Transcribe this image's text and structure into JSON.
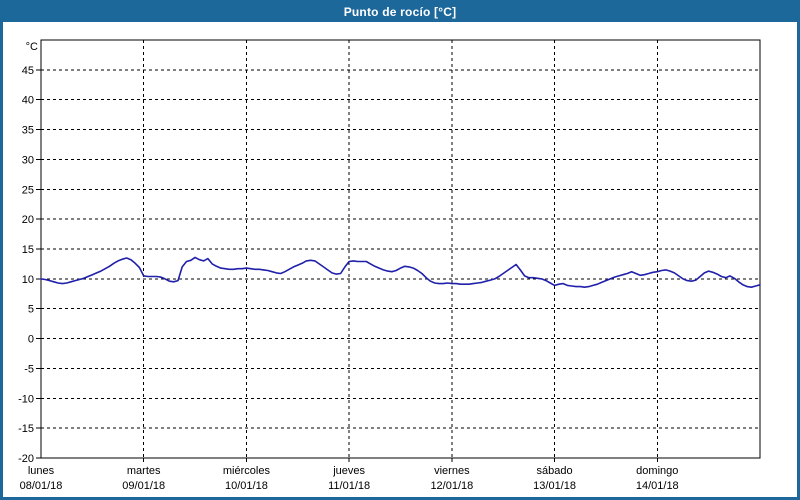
{
  "window": {
    "title": "Punto de rocío [°C]"
  },
  "colors": {
    "frame": "#1d689b",
    "titlebar_bg": "#1d689b",
    "title_text": "#ffffff",
    "plot_bg": "#ffffff",
    "grid": "#000000",
    "axis": "#000000",
    "line": "#2020aa",
    "label_text": "#000000"
  },
  "chart_data": {
    "type": "line",
    "title": "Punto de rocío [°C]",
    "ylabel": "°C",
    "xlabel": "",
    "ylim": [
      -20,
      50
    ],
    "yticks": [
      45,
      40,
      35,
      30,
      25,
      20,
      15,
      10,
      5,
      0,
      -5,
      -10,
      -15,
      -20
    ],
    "ygrid_values": [
      45,
      40,
      35,
      30,
      25,
      20,
      15,
      10,
      5,
      0,
      -5,
      -10,
      -15
    ],
    "grid": "dashed",
    "legend": "none",
    "x_resolution": "hourly",
    "days": [
      {
        "name": "lunes",
        "date": "08/01/18",
        "hourly": [
          10.0,
          9.9,
          9.7,
          9.5,
          9.3,
          9.2,
          9.3,
          9.5,
          9.7,
          9.9,
          10.1,
          10.4,
          10.7,
          11.0,
          11.3,
          11.7,
          12.1,
          12.6,
          13.0,
          13.3,
          13.5,
          13.2,
          12.6,
          11.9
        ]
      },
      {
        "name": "martes",
        "date": "09/01/18",
        "hourly": [
          10.5,
          10.4,
          10.4,
          10.4,
          10.3,
          10.0,
          9.6,
          9.5,
          9.7,
          12.0,
          12.9,
          13.1,
          13.6,
          13.2,
          13.0,
          13.4,
          12.5,
          12.1,
          11.8,
          11.7,
          11.6,
          11.6,
          11.7,
          11.7
        ]
      },
      {
        "name": "miércoles",
        "date": "10/01/18",
        "hourly": [
          11.8,
          11.7,
          11.6,
          11.6,
          11.5,
          11.4,
          11.2,
          11.0,
          10.9,
          11.2,
          11.6,
          12.0,
          12.3,
          12.6,
          13.0,
          13.1,
          13.0,
          12.5,
          12.0,
          11.5,
          11.0,
          10.8,
          10.9,
          12.0
        ]
      },
      {
        "name": "jueves",
        "date": "11/01/18",
        "hourly": [
          12.9,
          13.0,
          12.9,
          12.9,
          12.9,
          12.5,
          12.1,
          11.8,
          11.5,
          11.3,
          11.2,
          11.4,
          11.8,
          12.1,
          12.0,
          11.8,
          11.4,
          10.9,
          10.2,
          9.6,
          9.3,
          9.2,
          9.2,
          9.3
        ]
      },
      {
        "name": "viernes",
        "date": "12/01/18",
        "hourly": [
          9.2,
          9.2,
          9.1,
          9.1,
          9.1,
          9.2,
          9.3,
          9.4,
          9.6,
          9.8,
          10.0,
          10.4,
          10.9,
          11.4,
          11.9,
          12.4,
          11.5,
          10.5,
          10.2,
          10.2,
          10.1,
          10.0,
          9.7,
          9.3
        ]
      },
      {
        "name": "sábado",
        "date": "13/01/18",
        "hourly": [
          8.9,
          9.1,
          9.2,
          8.9,
          8.8,
          8.7,
          8.7,
          8.6,
          8.7,
          8.9,
          9.1,
          9.4,
          9.7,
          10.0,
          10.3,
          10.5,
          10.7,
          10.9,
          11.2,
          10.9,
          10.6,
          10.7,
          10.9,
          11.1
        ]
      },
      {
        "name": "domingo",
        "date": "14/01/18",
        "hourly": [
          11.2,
          11.4,
          11.5,
          11.3,
          11.0,
          10.5,
          10.0,
          9.7,
          9.6,
          9.8,
          10.4,
          11.0,
          11.3,
          11.1,
          10.8,
          10.4,
          10.2,
          10.5,
          10.1,
          9.5,
          9.0,
          8.7,
          8.6,
          8.8
        ]
      }
    ],
    "closing_value": 9.0
  }
}
